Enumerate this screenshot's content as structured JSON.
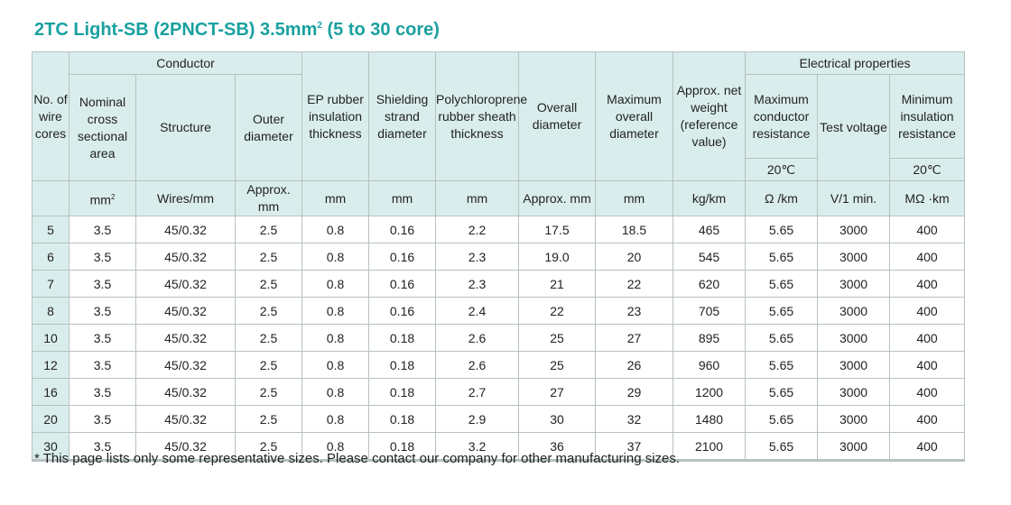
{
  "title": {
    "main": "2TC Light-SB (2PNCT-SB)  3.5mm",
    "sup": "2",
    "tail": " (5 to 30 core)"
  },
  "headers": {
    "no_of_wire_cores": "No. of wire cores",
    "conductor_group": "Conductor",
    "nominal_area": "Nominal cross sectional area",
    "structure": "Structure",
    "outer_diameter": "Outer diameter",
    "ep_rubber": "EP rubber insulation thickness",
    "shielding": "Shielding strand diameter",
    "polychloroprene": "Polychloroprene rubber sheath thickness",
    "overall_diameter": "Overall diameter",
    "max_overall_diameter": "Maximum overall diameter",
    "net_weight": "Approx. net weight (reference value)",
    "electrical_group": "Electrical properties",
    "max_resistance": "Maximum conductor resistance",
    "test_voltage": "Test voltage",
    "min_insulation": "Minimum insulation resistance",
    "temp_resistance": "20℃",
    "temp_insulation": "20℃"
  },
  "units": {
    "area_unit": "mm",
    "area_sup": "2",
    "structure": "Wires/mm",
    "outer_diameter": "Approx. mm",
    "ep_rubber": "mm",
    "shielding": "mm",
    "polychloroprene": "mm",
    "overall_diameter": "Approx. mm",
    "max_overall_diameter": "mm",
    "net_weight": "kg/km",
    "max_resistance": "Ω /km",
    "test_voltage": "V/1 min.",
    "min_insulation": "MΩ ·km"
  },
  "rows": [
    {
      "cores": "5",
      "area": "3.5",
      "structure": "45/0.32",
      "outer": "2.5",
      "ep": "0.8",
      "shield": "0.16",
      "sheath": "2.2",
      "overall": "17.5",
      "maxdia": "18.5",
      "weight": "465",
      "resistance": "5.65",
      "voltage": "3000",
      "insulation": "400"
    },
    {
      "cores": "6",
      "area": "3.5",
      "structure": "45/0.32",
      "outer": "2.5",
      "ep": "0.8",
      "shield": "0.16",
      "sheath": "2.3",
      "overall": "19.0",
      "maxdia": "20",
      "weight": "545",
      "resistance": "5.65",
      "voltage": "3000",
      "insulation": "400"
    },
    {
      "cores": "7",
      "area": "3.5",
      "structure": "45/0.32",
      "outer": "2.5",
      "ep": "0.8",
      "shield": "0.16",
      "sheath": "2.3",
      "overall": "21",
      "maxdia": "22",
      "weight": "620",
      "resistance": "5.65",
      "voltage": "3000",
      "insulation": "400"
    },
    {
      "cores": "8",
      "area": "3.5",
      "structure": "45/0.32",
      "outer": "2.5",
      "ep": "0.8",
      "shield": "0.16",
      "sheath": "2.4",
      "overall": "22",
      "maxdia": "23",
      "weight": "705",
      "resistance": "5.65",
      "voltage": "3000",
      "insulation": "400"
    },
    {
      "cores": "10",
      "area": "3.5",
      "structure": "45/0.32",
      "outer": "2.5",
      "ep": "0.8",
      "shield": "0.18",
      "sheath": "2.6",
      "overall": "25",
      "maxdia": "27",
      "weight": "895",
      "resistance": "5.65",
      "voltage": "3000",
      "insulation": "400"
    },
    {
      "cores": "12",
      "area": "3.5",
      "structure": "45/0.32",
      "outer": "2.5",
      "ep": "0.8",
      "shield": "0.18",
      "sheath": "2.6",
      "overall": "25",
      "maxdia": "26",
      "weight": "960",
      "resistance": "5.65",
      "voltage": "3000",
      "insulation": "400"
    },
    {
      "cores": "16",
      "area": "3.5",
      "structure": "45/0.32",
      "outer": "2.5",
      "ep": "0.8",
      "shield": "0.18",
      "sheath": "2.7",
      "overall": "27",
      "maxdia": "29",
      "weight": "1200",
      "resistance": "5.65",
      "voltage": "3000",
      "insulation": "400"
    },
    {
      "cores": "20",
      "area": "3.5",
      "structure": "45/0.32",
      "outer": "2.5",
      "ep": "0.8",
      "shield": "0.18",
      "sheath": "2.9",
      "overall": "30",
      "maxdia": "32",
      "weight": "1480",
      "resistance": "5.65",
      "voltage": "3000",
      "insulation": "400"
    },
    {
      "cores": "30",
      "area": "3.5",
      "structure": "45/0.32",
      "outer": "2.5",
      "ep": "0.8",
      "shield": "0.18",
      "sheath": "3.2",
      "overall": "36",
      "maxdia": "37",
      "weight": "2100",
      "resistance": "5.65",
      "voltage": "3000",
      "insulation": "400"
    }
  ],
  "footnote": "* This page lists only some representative sizes. Please contact our company for other manufacturing sizes.",
  "colors": {
    "title": "#1aa0a0",
    "header_bg": "#daeded",
    "border": "#b7c1c1"
  }
}
